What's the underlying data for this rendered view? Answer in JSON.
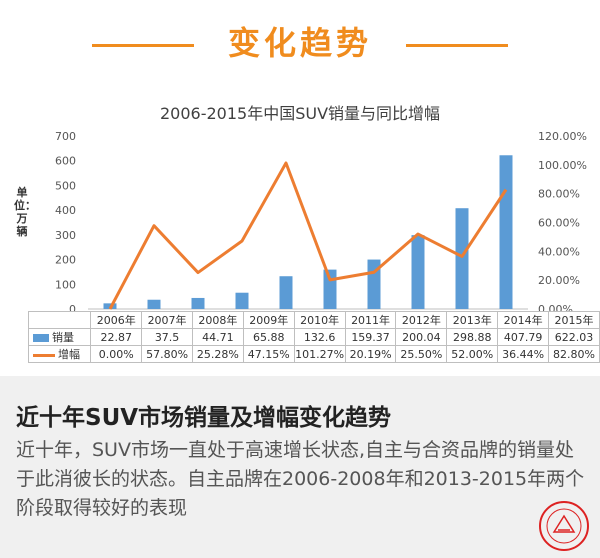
{
  "banner": {
    "title": "变化趋势",
    "accent": "#f08c1e"
  },
  "chart_data": {
    "type": "bar+line",
    "title": "2006-2015年中国SUV销量与同比增幅",
    "ylabel": "单位：万辆",
    "categories": [
      "2006年",
      "2007年",
      "2008年",
      "2009年",
      "2010年",
      "2011年",
      "2012年",
      "2013年",
      "2014年",
      "2015年"
    ],
    "series": [
      {
        "name": "销量",
        "type": "bar",
        "axis": "left",
        "color": "#5b9bd5",
        "values": [
          22.87,
          37.5,
          44.71,
          65.88,
          132.6,
          159.37,
          200.04,
          298.88,
          407.79,
          622.03
        ],
        "labels": [
          "22.87",
          "37.5",
          "44.71",
          "65.88",
          "132.6",
          "159.37",
          "200.04",
          "298.88",
          "407.79",
          "622.03"
        ]
      },
      {
        "name": "增幅",
        "type": "line",
        "axis": "right",
        "color": "#ed7d31",
        "values": [
          0.0,
          57.8,
          25.28,
          47.15,
          101.27,
          20.19,
          25.5,
          52.0,
          36.44,
          82.8
        ],
        "labels": [
          "0.00%",
          "57.80%",
          "25.28%",
          "47.15%",
          "101.27%",
          "20.19%",
          "25.50%",
          "52.00%",
          "36.44%",
          "82.80%"
        ]
      }
    ],
    "y_left": {
      "ylim": [
        0,
        700
      ],
      "ticks": [
        "0",
        "100",
        "200",
        "300",
        "400",
        "500",
        "600",
        "700"
      ]
    },
    "y_right": {
      "ylim": [
        0,
        120
      ],
      "ticks": [
        "0.00%",
        "20.00%",
        "40.00%",
        "60.00%",
        "80.00%",
        "100.00%",
        "120.00%"
      ]
    },
    "legend": "data-table"
  },
  "article": {
    "heading": "近十年SUV市场销量及增幅变化趋势",
    "paragraph": "近十年，SUV市场一直处于高速增长状态,自主与合资品牌的销量处于此消彼长的状态。自主品牌在2006-2008年和2013-2015年两个阶段取得较好的表现"
  }
}
